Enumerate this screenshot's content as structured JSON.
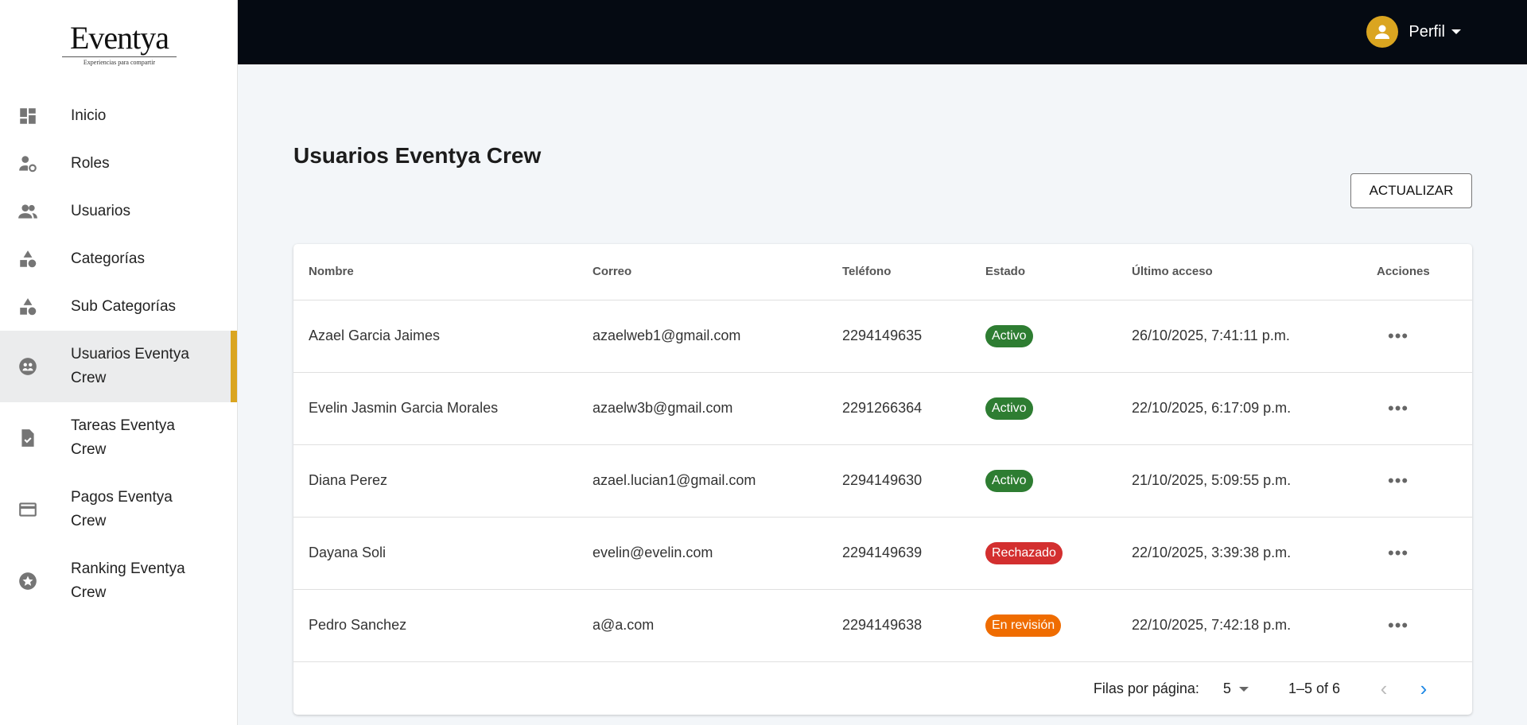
{
  "brand": {
    "name": "Eventya",
    "tagline": "Experiencias para compartir",
    "accent": "#daa520"
  },
  "sidebar": {
    "items": [
      {
        "label": "Inicio",
        "icon": "dashboard-icon"
      },
      {
        "label": "Roles",
        "icon": "user-gear-icon"
      },
      {
        "label": "Usuarios",
        "icon": "group-icon"
      },
      {
        "label": "Categorías",
        "icon": "shapes-icon"
      },
      {
        "label": "Sub Categorías",
        "icon": "shapes-icon"
      },
      {
        "label": "Usuarios Eventya Crew",
        "icon": "crew-icon",
        "active": true
      },
      {
        "label": "Tareas Eventya Crew",
        "icon": "task-file-icon"
      },
      {
        "label": "Pagos Eventya Crew",
        "icon": "credit-card-icon"
      },
      {
        "label": "Ranking Eventya Crew",
        "icon": "star-icon"
      }
    ]
  },
  "topbar": {
    "profile_label": "Perfil"
  },
  "page": {
    "title": "Usuarios Eventya Crew",
    "refresh_label": "ACTUALIZAR"
  },
  "table": {
    "columns": [
      "Nombre",
      "Correo",
      "Teléfono",
      "Estado",
      "Último acceso",
      "Acciones"
    ],
    "rows": [
      {
        "name": "Azael Garcia Jaimes",
        "email": "azaelweb1@gmail.com",
        "phone": "2294149635",
        "status": "Activo",
        "last": "26/10/2025, 7:41:11 p.m."
      },
      {
        "name": "Evelin Jasmin Garcia Morales",
        "email": "azaelw3b@gmail.com",
        "phone": "2291266364",
        "status": "Activo",
        "last": "22/10/2025, 6:17:09 p.m."
      },
      {
        "name": "Diana Perez",
        "email": "azael.lucian1@gmail.com",
        "phone": "2294149630",
        "status": "Activo",
        "last": "21/10/2025, 5:09:55 p.m."
      },
      {
        "name": "Dayana Soli",
        "email": "evelin@evelin.com",
        "phone": "2294149639",
        "status": "Rechazado",
        "last": "22/10/2025, 3:39:38 p.m."
      },
      {
        "name": "Pedro Sanchez",
        "email": "a@a.com",
        "phone": "2294149638",
        "status": "En revisión",
        "last": "22/10/2025, 7:42:18 p.m."
      }
    ],
    "actions_glyph": "•••",
    "status_colors": {
      "Activo": "#2e7d32",
      "Rechazado": "#d32f2f",
      "En revisión": "#ef6c00"
    }
  },
  "pagination": {
    "rows_per_page_label": "Filas por página:",
    "rows_per_page": "5",
    "range": "1–5 of 6",
    "prev": "‹",
    "next": "›"
  }
}
